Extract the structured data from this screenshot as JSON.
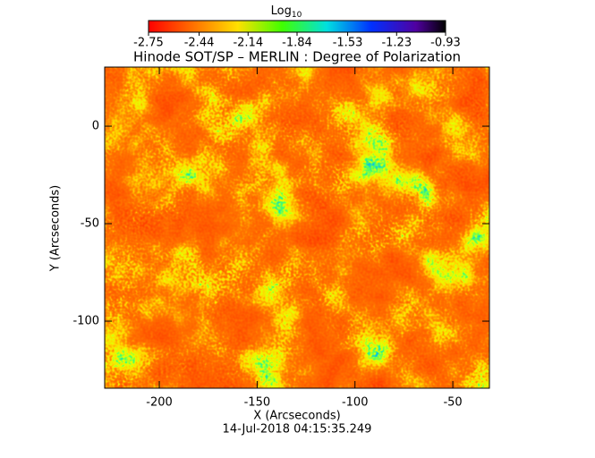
{
  "chart_data": {
    "type": "heatmap",
    "title": "Hinode SOT/SP – MERLIN : Degree of Polarization",
    "subtitle": "14-Jul-2018 04:15:35.249",
    "x_label": "X (Arcseconds)",
    "y_label": "Y (Arcseconds)",
    "xlim": [
      -227.9,
      -31.3
    ],
    "xticks": [
      -200,
      -150,
      -100,
      -50
    ],
    "ylim": [
      -134.4,
      30.3
    ],
    "yticks": [
      -100,
      -50,
      0
    ],
    "colorbar": {
      "label": "Log",
      "label_subscript": "10",
      "clim": [
        -2.75,
        -0.93
      ],
      "ticks": [
        -2.75,
        -2.44,
        -2.14,
        -1.84,
        -1.53,
        -1.23,
        -0.93
      ]
    }
  }
}
